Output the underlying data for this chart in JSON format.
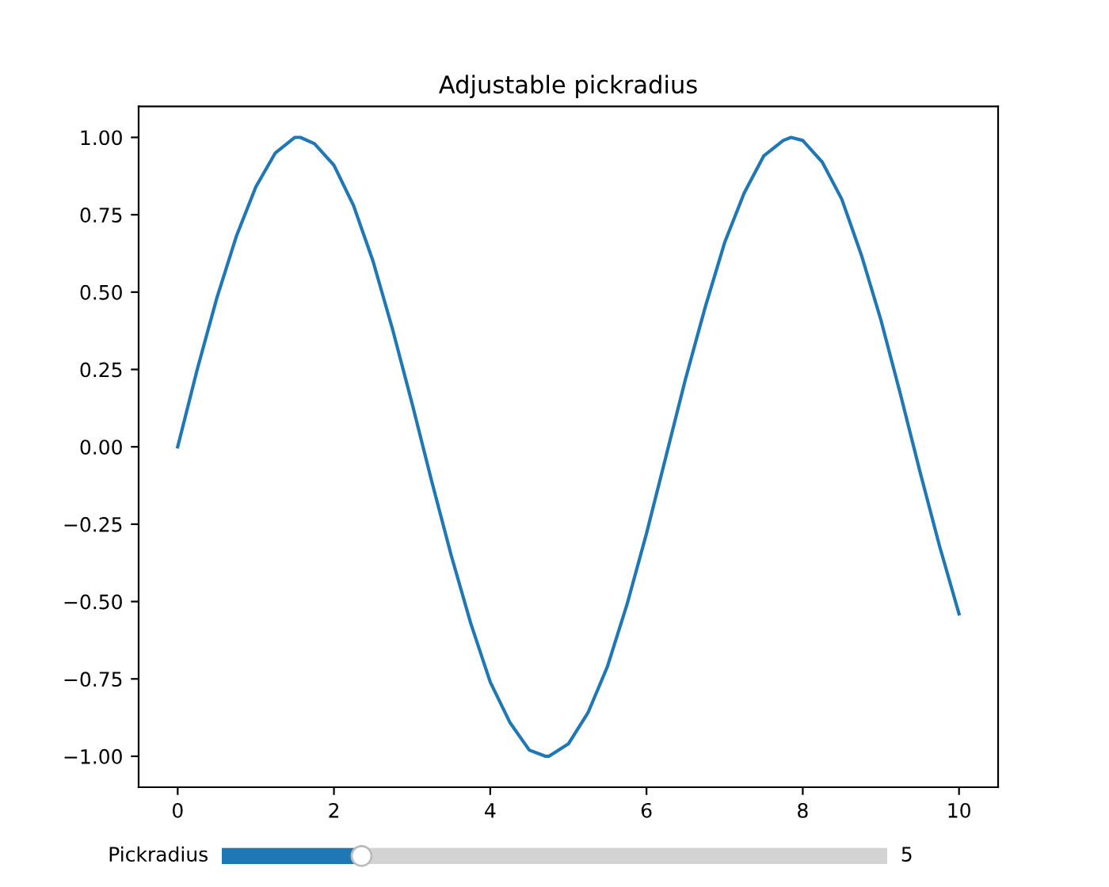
{
  "chart_data": {
    "type": "line",
    "title": "Adjustable pickradius",
    "x": [
      0,
      0.25,
      0.5,
      0.75,
      1.0,
      1.25,
      1.5,
      1.57,
      1.75,
      2.0,
      2.25,
      2.5,
      2.75,
      3.0,
      3.25,
      3.5,
      3.75,
      4.0,
      4.25,
      4.5,
      4.71,
      4.75,
      5.0,
      5.25,
      5.5,
      5.75,
      6.0,
      6.25,
      6.5,
      6.75,
      7.0,
      7.25,
      7.5,
      7.75,
      7.85,
      8.0,
      8.25,
      8.5,
      8.75,
      9.0,
      9.25,
      9.5,
      9.75,
      10.0
    ],
    "series": [
      {
        "color": "#1f77b4",
        "values": [
          0.0,
          0.25,
          0.48,
          0.68,
          0.84,
          0.95,
          1.0,
          1.0,
          0.98,
          0.91,
          0.78,
          0.6,
          0.38,
          0.14,
          -0.11,
          -0.35,
          -0.57,
          -0.76,
          -0.89,
          -0.98,
          -1.0,
          -1.0,
          -0.96,
          -0.86,
          -0.71,
          -0.51,
          -0.28,
          -0.03,
          0.22,
          0.45,
          0.66,
          0.82,
          0.94,
          0.99,
          1.0,
          0.99,
          0.92,
          0.8,
          0.62,
          0.41,
          0.17,
          -0.08,
          -0.32,
          -0.54
        ]
      }
    ],
    "xlim": [
      -0.5,
      10.5
    ],
    "xticks": [
      0,
      2,
      4,
      6,
      8,
      10
    ],
    "ylim": [
      -1.1,
      1.1
    ],
    "yticks": [
      {
        "value": -1.0,
        "label": "−1.00"
      },
      {
        "value": -0.75,
        "label": "−0.75"
      },
      {
        "value": -0.5,
        "label": "−0.50"
      },
      {
        "value": -0.25,
        "label": "−0.25"
      },
      {
        "value": 0.0,
        "label": "0.00"
      },
      {
        "value": 0.25,
        "label": "0.25"
      },
      {
        "value": 0.5,
        "label": "0.50"
      },
      {
        "value": 0.75,
        "label": "0.75"
      },
      {
        "value": 1.0,
        "label": "1.00"
      }
    ],
    "grid": false,
    "marker": "none",
    "line_style": "solid",
    "annotations": [
      "Pickradius",
      "5"
    ]
  }
}
